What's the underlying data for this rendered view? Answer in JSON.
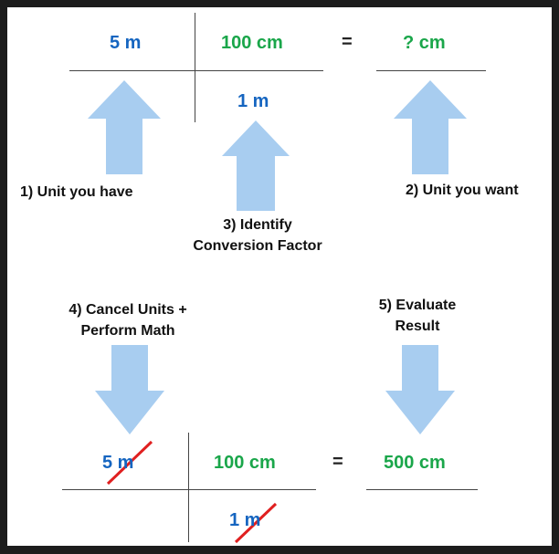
{
  "colors": {
    "blue": "#1565c0",
    "green": "#1aa64a",
    "arrow": "#a8cdf0",
    "strike": "#e02020"
  },
  "top_equation": {
    "given": "5 m",
    "numerator": "100 cm",
    "denominator": "1 m",
    "equals": "=",
    "answer": "? cm"
  },
  "steps": {
    "step1": "1) Unit you have",
    "step2": "2) Unit you want",
    "step3_line1": "3) Identify",
    "step3_line2": "Conversion Factor",
    "step4_line1": "4) Cancel Units +",
    "step4_line2": "Perform Math",
    "step5_line1": "5) Evaluate",
    "step5_line2": "Result"
  },
  "bottom_equation": {
    "given": "5 m",
    "numerator": "100 cm",
    "denominator": "1 m",
    "equals": "=",
    "answer": "500 cm"
  },
  "icons": {
    "up_arrow": "up-arrow-icon",
    "down_arrow": "down-arrow-icon",
    "strikethrough": "cancel-strike-icon"
  }
}
